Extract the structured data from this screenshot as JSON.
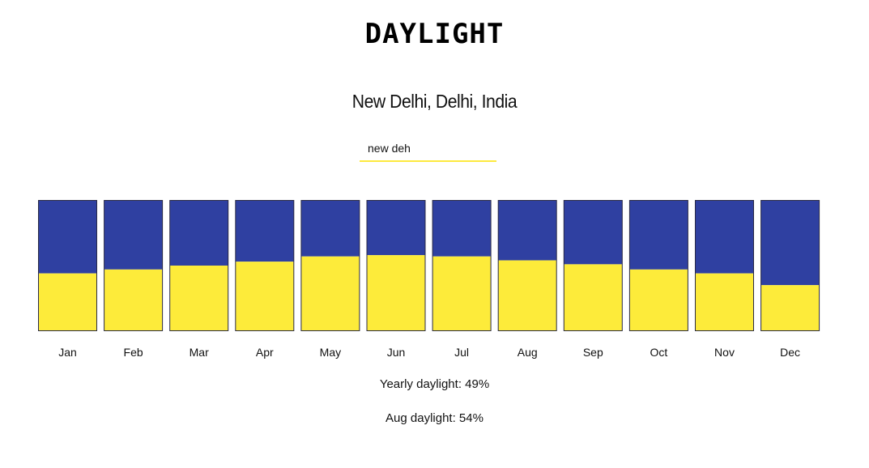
{
  "app": {
    "logo_text": "DAYLIGHT"
  },
  "location": {
    "title": "New Delhi, Delhi, India"
  },
  "search": {
    "value": "new deh"
  },
  "colors": {
    "night": "#2f40a1",
    "day": "#fdeb3a",
    "accent_underline": "#fde93f",
    "bar_border": "#2a2a45"
  },
  "chart_data": {
    "type": "bar",
    "stacked": true,
    "categories": [
      "Jan",
      "Feb",
      "Mar",
      "Apr",
      "May",
      "Jun",
      "Jul",
      "Aug",
      "Sep",
      "Oct",
      "Nov",
      "Dec"
    ],
    "series": [
      {
        "values": [
          0.44,
          0.47,
          0.5,
          0.53,
          0.57,
          0.58,
          0.57,
          0.54,
          0.51,
          0.47,
          0.44,
          0.35
        ]
      },
      {
        "values": [
          0.56,
          0.53,
          0.5,
          0.47,
          0.43,
          0.42,
          0.43,
          0.46,
          0.49,
          0.53,
          0.56,
          0.65
        ]
      }
    ],
    "ylim": [
      0,
      1
    ]
  },
  "stats": {
    "yearly_text": "Yearly daylight: 49%",
    "selected_month_text": "Aug daylight: 54%"
  }
}
